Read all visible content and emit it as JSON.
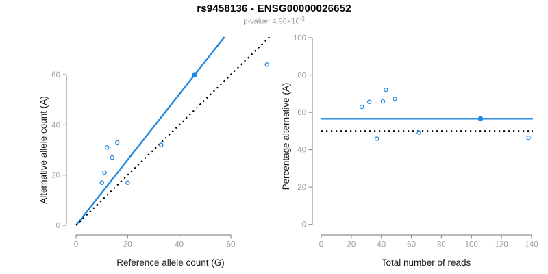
{
  "header": {
    "title": "rs9458136 - ENSG00000026652",
    "subtitle_base": "p-value: 4.98×10",
    "subtitle_exponent": "-3"
  },
  "colors": {
    "accent_blue": "#1E88E5",
    "identity_line": "#000000",
    "axis": "#909090",
    "tick_label": "#9a9a9a",
    "axis_title": "#1a1a1a",
    "subtitle": "#9a9a9a"
  },
  "chart_data": [
    {
      "type": "scatter",
      "name": "allele-counts",
      "xlabel": "Reference allele count (G)",
      "ylabel": "Alternative allele count (A)",
      "xlim": [
        0,
        60
      ],
      "ylim": [
        0,
        60
      ],
      "xticks": [
        0,
        20,
        40,
        60
      ],
      "yticks": [
        0,
        20,
        40,
        60
      ],
      "grid": false,
      "legend": "none",
      "points": [
        {
          "x": 10,
          "y": 17,
          "filled": false
        },
        {
          "x": 11,
          "y": 21,
          "filled": false
        },
        {
          "x": 12,
          "y": 31,
          "filled": false
        },
        {
          "x": 14,
          "y": 27,
          "filled": false
        },
        {
          "x": 16,
          "y": 33,
          "filled": false
        },
        {
          "x": 20,
          "y": 17,
          "filled": false
        },
        {
          "x": 33,
          "y": 32,
          "filled": false
        },
        {
          "x": 46,
          "y": 60,
          "filled": true
        },
        {
          "x": 74,
          "y": 64,
          "filled": false
        }
      ],
      "lines": [
        {
          "name": "fitted-ratio-line",
          "style": "solid",
          "slope": 1.304,
          "intercept": 0,
          "color_key": "accent_blue"
        },
        {
          "name": "identity-line",
          "style": "dotted",
          "slope": 1,
          "intercept": 0,
          "color_key": "identity_line"
        }
      ]
    },
    {
      "type": "scatter",
      "name": "percentage-vs-coverage",
      "xlabel": "Total number of reads",
      "ylabel": "Percentage alternative (A)",
      "xlim": [
        0,
        140
      ],
      "ylim": [
        0,
        100
      ],
      "xticks": [
        0,
        20,
        40,
        60,
        80,
        100,
        120,
        140
      ],
      "yticks": [
        0,
        20,
        40,
        60,
        80,
        100
      ],
      "grid": false,
      "legend": "none",
      "points": [
        {
          "x": 27,
          "y": 63.0,
          "filled": false
        },
        {
          "x": 32,
          "y": 65.6,
          "filled": false
        },
        {
          "x": 37,
          "y": 45.9,
          "filled": false
        },
        {
          "x": 41,
          "y": 65.9,
          "filled": false
        },
        {
          "x": 43,
          "y": 72.1,
          "filled": false
        },
        {
          "x": 49,
          "y": 67.3,
          "filled": false
        },
        {
          "x": 65,
          "y": 49.2,
          "filled": false
        },
        {
          "x": 106,
          "y": 56.6,
          "filled": true
        },
        {
          "x": 138,
          "y": 46.4,
          "filled": false
        }
      ],
      "hlines": [
        {
          "name": "mean-percentage-line",
          "style": "solid",
          "y": 56.6,
          "color_key": "accent_blue"
        },
        {
          "name": "null-50-percent-line",
          "style": "dotted",
          "y": 50,
          "color_key": "identity_line"
        }
      ]
    }
  ]
}
